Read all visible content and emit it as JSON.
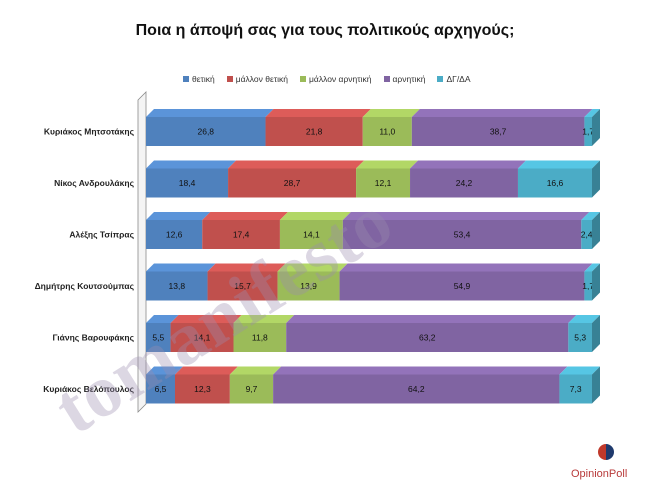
{
  "chart_data": {
    "type": "bar",
    "orientation": "horizontal-stacked-100",
    "title": "Ποια η άποψή σας για τους πολιτικούς αρχηγούς;",
    "legend_position": "top",
    "categories": [
      "Κυριάκος Μητσοτάκης",
      "Νίκος Ανδρουλάκης",
      "Αλέξης Τσίπρας",
      "Δημήτρης Κουτσούμπας",
      "Γιάνης Βαρουφάκης",
      "Κυριάκος Βελόπουλος"
    ],
    "series": [
      {
        "name": "θετική",
        "color": "#4f81bd",
        "values": [
          26.8,
          18.4,
          12.6,
          13.8,
          5.5,
          6.5
        ]
      },
      {
        "name": "μάλλον θετική",
        "color": "#c0504d",
        "values": [
          21.8,
          28.7,
          17.4,
          15.7,
          14.1,
          12.3
        ]
      },
      {
        "name": "μάλλον αρνητική",
        "color": "#9bbb59",
        "values": [
          11.0,
          12.1,
          14.1,
          13.9,
          11.8,
          9.7
        ]
      },
      {
        "name": "αρνητική",
        "color": "#8064a2",
        "values": [
          38.7,
          24.2,
          53.4,
          54.9,
          63.2,
          64.2
        ]
      },
      {
        "name": "ΔΓ/ΔΑ",
        "color": "#4bacc6",
        "values": [
          1.7,
          16.6,
          2.4,
          1.7,
          5.3,
          7.3
        ]
      }
    ]
  },
  "watermark": "tomanifesto",
  "brand": "OpinionPoll"
}
